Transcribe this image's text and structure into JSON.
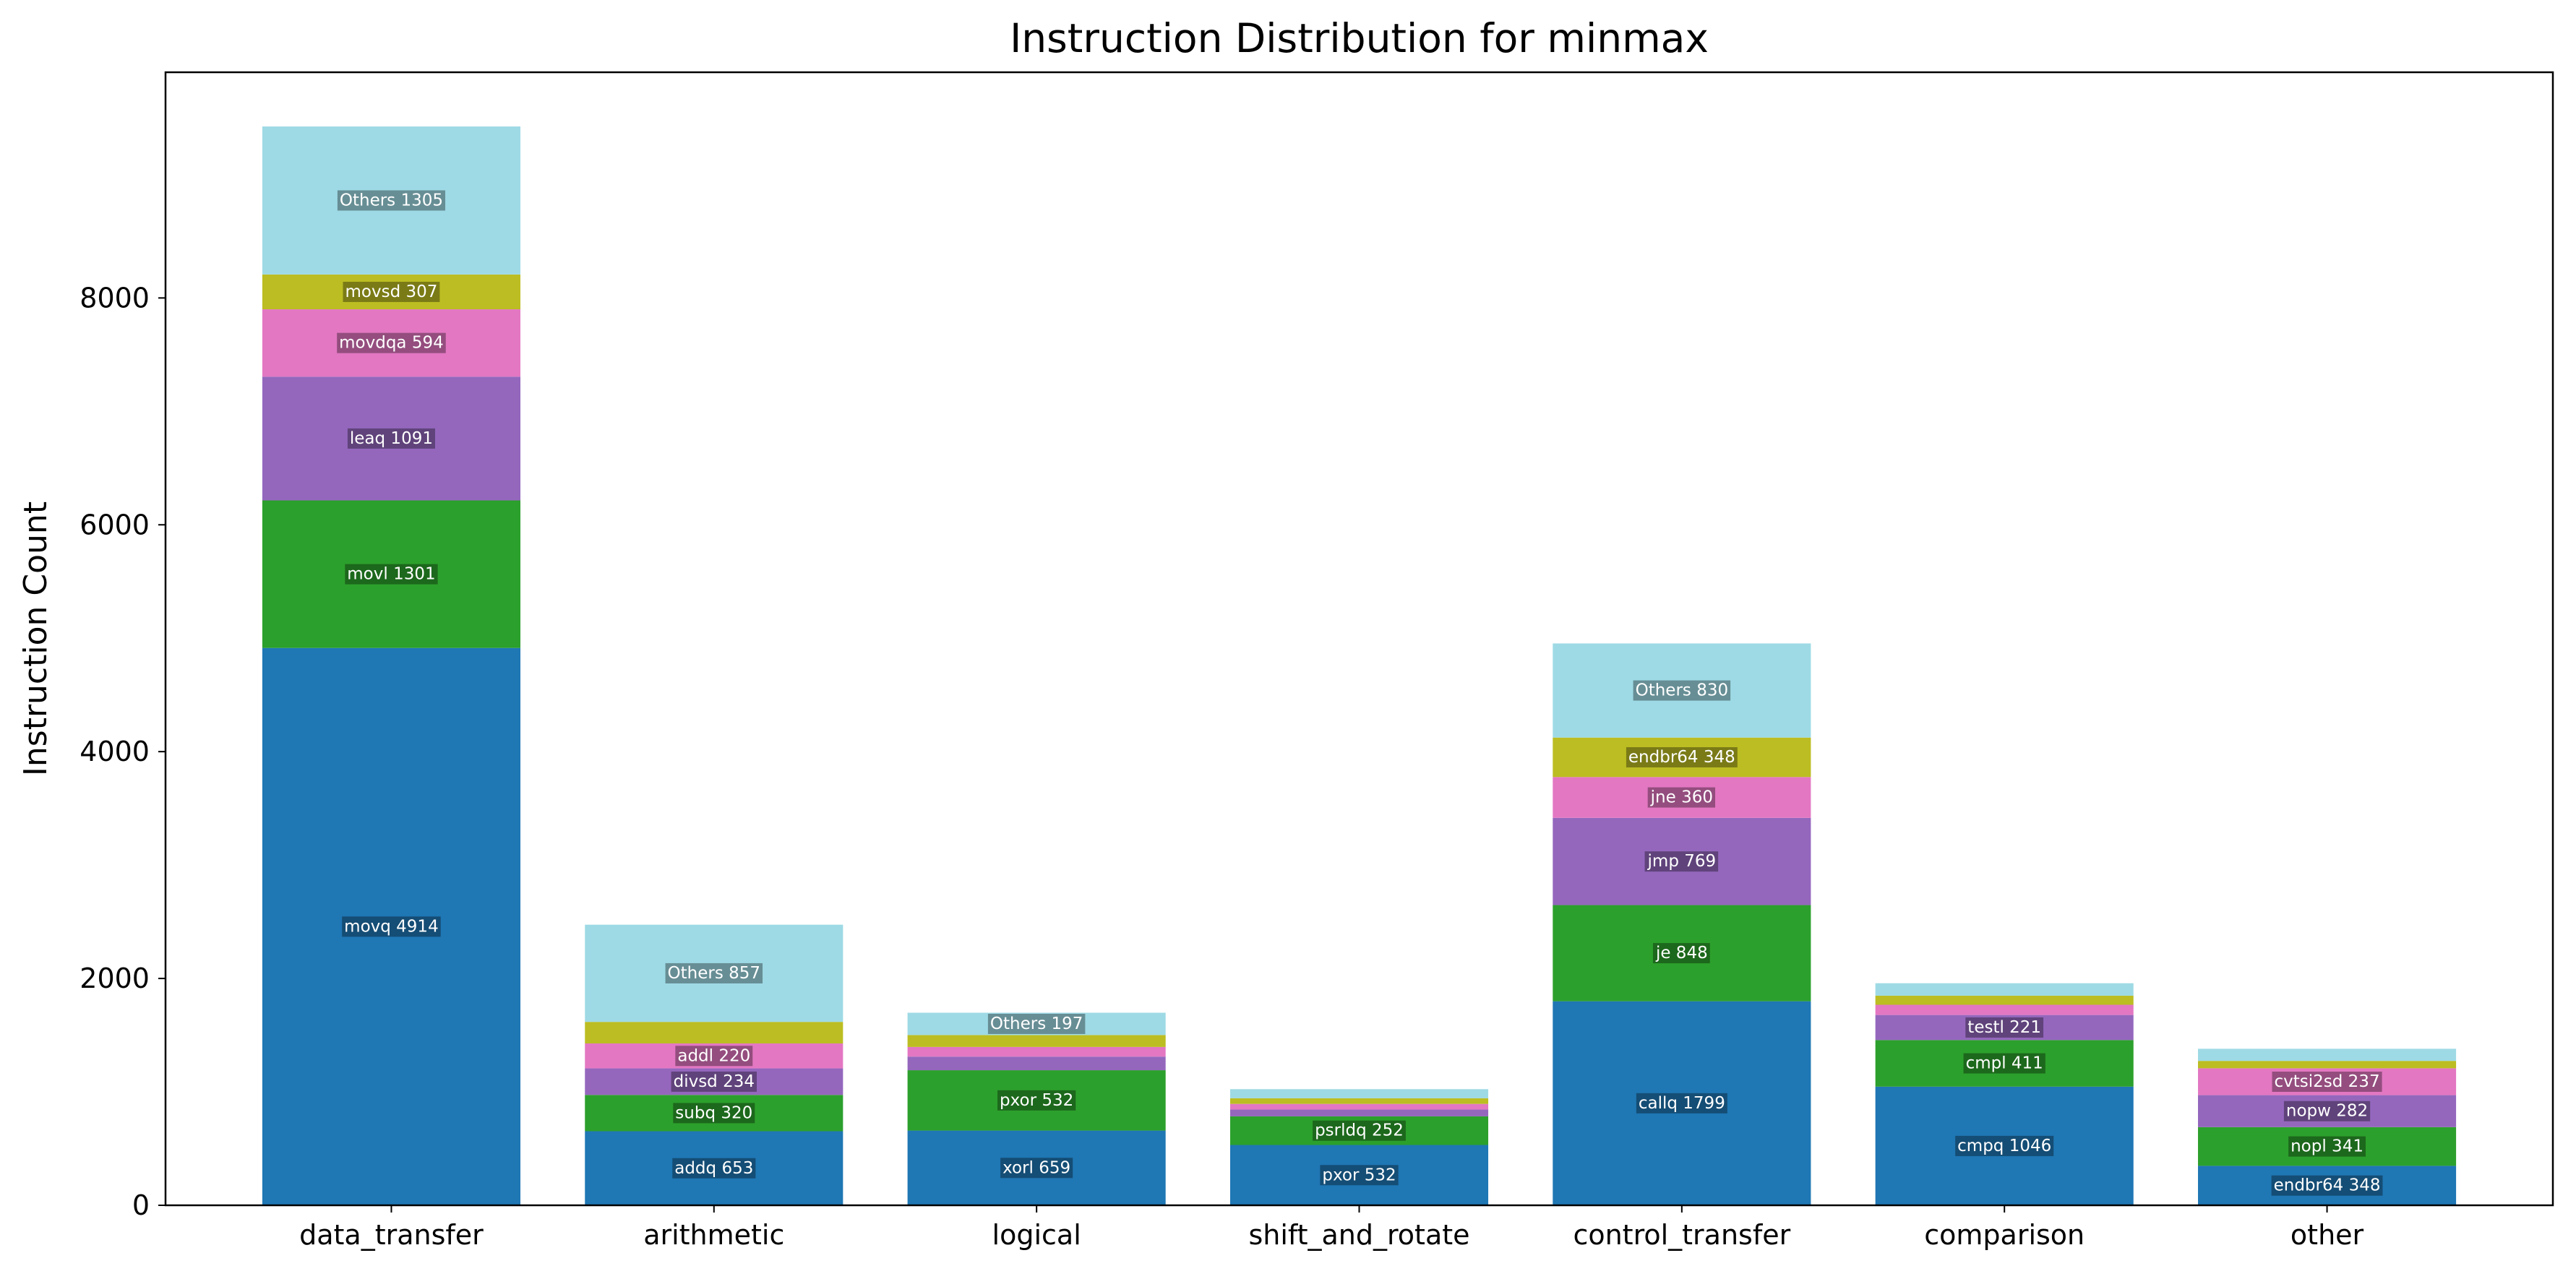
{
  "chart_data": {
    "type": "bar",
    "stacked": true,
    "title": "Instruction Distribution for minmax",
    "xlabel": "",
    "ylabel": "Instruction Count",
    "ylim": [
      0,
      9990
    ],
    "yticks": [
      0,
      2000,
      4000,
      6000,
      8000
    ],
    "grid": false,
    "legend": "none",
    "segment_colors": [
      "#1f77b4",
      "#2ca02c",
      "#9467bd",
      "#e377c2",
      "#bcbd22",
      "#9edae5"
    ],
    "categories": [
      {
        "name": "data_transfer",
        "segments": [
          {
            "label": "movq",
            "value": 4914,
            "text": "movq 4914"
          },
          {
            "label": "movl",
            "value": 1301,
            "text": "movl 1301"
          },
          {
            "label": "leaq",
            "value": 1091,
            "text": "leaq 1091"
          },
          {
            "label": "movdqa",
            "value": 594,
            "text": "movdqa 594"
          },
          {
            "label": "movsd",
            "value": 307,
            "text": "movsd 307"
          },
          {
            "label": "Others",
            "value": 1305,
            "text": "Others 1305"
          }
        ]
      },
      {
        "name": "arithmetic",
        "segments": [
          {
            "label": "addq",
            "value": 653,
            "text": "addq 653"
          },
          {
            "label": "subq",
            "value": 320,
            "text": "subq 320"
          },
          {
            "label": "divsd",
            "value": 234,
            "text": "divsd 234"
          },
          {
            "label": "addl",
            "value": 220,
            "text": "addl 220"
          },
          {
            "label": "",
            "value": 190,
            "text": ""
          },
          {
            "label": "Others",
            "value": 857,
            "text": "Others 857"
          }
        ]
      },
      {
        "name": "logical",
        "segments": [
          {
            "label": "xorl",
            "value": 659,
            "text": "xorl 659"
          },
          {
            "label": "pxor",
            "value": 532,
            "text": "pxor 532"
          },
          {
            "label": "",
            "value": 120,
            "text": ""
          },
          {
            "label": "",
            "value": 85,
            "text": ""
          },
          {
            "label": "",
            "value": 105,
            "text": ""
          },
          {
            "label": "Others",
            "value": 197,
            "text": "Others 197"
          }
        ]
      },
      {
        "name": "shift_and_rotate",
        "segments": [
          {
            "label": "pxor",
            "value": 532,
            "text": "pxor 532"
          },
          {
            "label": "psrldq",
            "value": 252,
            "text": "psrldq 252"
          },
          {
            "label": "",
            "value": 60,
            "text": ""
          },
          {
            "label": "",
            "value": 50,
            "text": ""
          },
          {
            "label": "",
            "value": 50,
            "text": ""
          },
          {
            "label": "",
            "value": 80,
            "text": ""
          }
        ]
      },
      {
        "name": "control_transfer",
        "segments": [
          {
            "label": "callq",
            "value": 1799,
            "text": "callq 1799"
          },
          {
            "label": "je",
            "value": 848,
            "text": "je 848"
          },
          {
            "label": "jmp",
            "value": 769,
            "text": "jmp 769"
          },
          {
            "label": "jne",
            "value": 360,
            "text": "jne 360"
          },
          {
            "label": "endbr64",
            "value": 348,
            "text": "endbr64 348"
          },
          {
            "label": "Others",
            "value": 830,
            "text": "Others 830"
          }
        ]
      },
      {
        "name": "comparison",
        "segments": [
          {
            "label": "cmpq",
            "value": 1046,
            "text": "cmpq 1046"
          },
          {
            "label": "cmpl",
            "value": 411,
            "text": "cmpl 411"
          },
          {
            "label": "testl",
            "value": 221,
            "text": "testl 221"
          },
          {
            "label": "",
            "value": 90,
            "text": ""
          },
          {
            "label": "",
            "value": 80,
            "text": ""
          },
          {
            "label": "",
            "value": 110,
            "text": ""
          }
        ]
      },
      {
        "name": "other",
        "segments": [
          {
            "label": "endbr64",
            "value": 348,
            "text": "endbr64 348"
          },
          {
            "label": "nopl",
            "value": 341,
            "text": "nopl 341"
          },
          {
            "label": "nopw",
            "value": 282,
            "text": "nopw 282"
          },
          {
            "label": "cvtsi2sd",
            "value": 237,
            "text": "cvtsi2sd 237"
          },
          {
            "label": "",
            "value": 65,
            "text": ""
          },
          {
            "label": "",
            "value": 107,
            "text": ""
          }
        ]
      }
    ]
  }
}
